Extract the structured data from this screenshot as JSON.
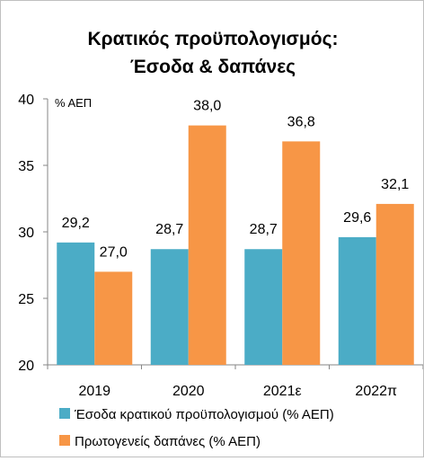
{
  "chart_data": {
    "type": "bar",
    "title_line1": "Κρατικός προϋπολογισμός:",
    "title_line2": "Έσοδα & δαπάνες",
    "unit_label": "% ΑΕΠ",
    "categories": [
      "2019",
      "2020",
      "2021ε",
      "2022π"
    ],
    "series": [
      {
        "name": "Έσοδα κρατικού προϋπολογισμού (% ΑΕΠ)",
        "values": [
          29.2,
          28.7,
          28.7,
          29.6
        ],
        "color": "#4bacc6"
      },
      {
        "name": "Πρωτογενείς δαπάνες (% ΑΕΠ)",
        "values": [
          27.0,
          38.0,
          36.8,
          32.1
        ],
        "color": "#f79646"
      }
    ],
    "data_labels": [
      [
        "29,2",
        "28,7",
        "28,7",
        "29,6"
      ],
      [
        "27,0",
        "38,0",
        "36,8",
        "32,1"
      ]
    ],
    "ylim": [
      20,
      40
    ],
    "yticks": [
      20,
      25,
      30,
      35,
      40
    ],
    "grid": false,
    "legend_position": "bottom"
  }
}
